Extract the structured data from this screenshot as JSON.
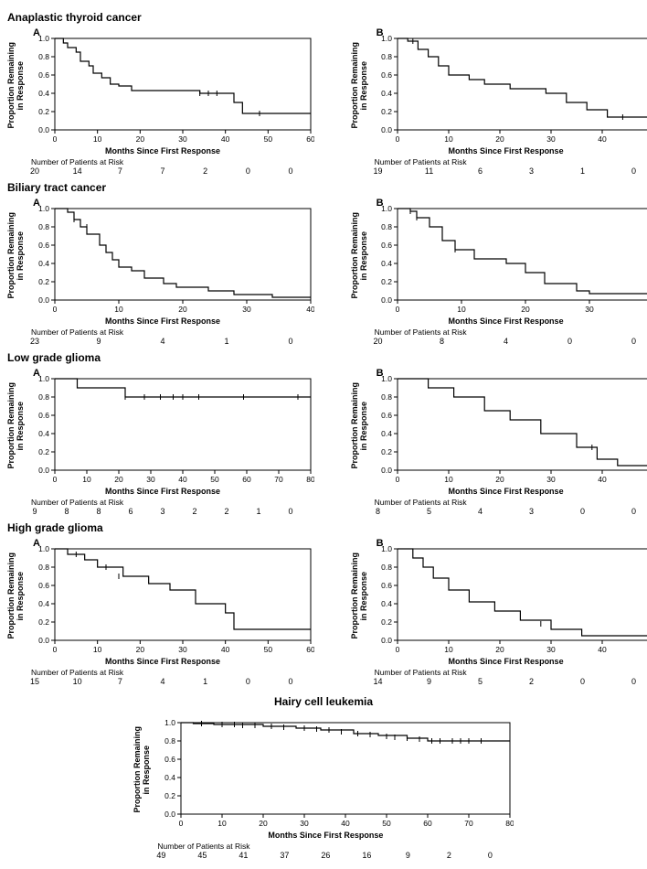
{
  "global": {
    "y_axis_title": "Proportion Remaining\nin Response",
    "x_axis_title": "Months Since First Response",
    "risk_label": "Number of Patients at Risk",
    "line_color": "#000000",
    "background_color": "#ffffff",
    "axis_color": "#000000",
    "font_family": "Arial",
    "label_fontsize": 9,
    "title_fontsize": 12,
    "y_ticks": [
      0,
      0.2,
      0.4,
      0.6,
      0.8,
      1.0
    ]
  },
  "groups": [
    {
      "title": "Anaplastic thyroid cancer",
      "panels": [
        {
          "label": "A",
          "xlim": [
            0,
            60
          ],
          "xtick_step": 10,
          "km": [
            [
              0,
              1.0
            ],
            [
              2,
              0.95
            ],
            [
              3,
              0.9
            ],
            [
              5,
              0.85
            ],
            [
              6,
              0.75
            ],
            [
              8,
              0.7
            ],
            [
              9,
              0.62
            ],
            [
              11,
              0.57
            ],
            [
              13,
              0.5
            ],
            [
              15,
              0.48
            ],
            [
              18,
              0.43
            ],
            [
              20,
              0.43
            ],
            [
              34,
              0.4
            ],
            [
              42,
              0.3
            ],
            [
              44,
              0.18
            ],
            [
              60,
              0.18
            ]
          ],
          "censors": [
            [
              34,
              0.4
            ],
            [
              36,
              0.4
            ],
            [
              38,
              0.4
            ],
            [
              48,
              0.18
            ]
          ],
          "risk": [
            20,
            14,
            7,
            7,
            2,
            0,
            0
          ]
        },
        {
          "label": "B",
          "xlim": [
            0,
            50
          ],
          "xtick_step": 10,
          "km": [
            [
              0,
              1.0
            ],
            [
              2,
              0.97
            ],
            [
              4,
              0.88
            ],
            [
              6,
              0.8
            ],
            [
              8,
              0.7
            ],
            [
              10,
              0.6
            ],
            [
              14,
              0.55
            ],
            [
              17,
              0.5
            ],
            [
              22,
              0.45
            ],
            [
              29,
              0.4
            ],
            [
              33,
              0.3
            ],
            [
              37,
              0.22
            ],
            [
              41,
              0.14
            ],
            [
              50,
              0.14
            ]
          ],
          "censors": [
            [
              3,
              0.97
            ],
            [
              44,
              0.14
            ]
          ],
          "risk": [
            19,
            11,
            6,
            3,
            1,
            0
          ]
        }
      ]
    },
    {
      "title": "Biliary tract cancer",
      "panels": [
        {
          "label": "A",
          "xlim": [
            0,
            40
          ],
          "xtick_step": 10,
          "km": [
            [
              0,
              1.0
            ],
            [
              2,
              0.96
            ],
            [
              3,
              0.88
            ],
            [
              4,
              0.8
            ],
            [
              5,
              0.72
            ],
            [
              7,
              0.6
            ],
            [
              8,
              0.52
            ],
            [
              9,
              0.44
            ],
            [
              10,
              0.36
            ],
            [
              12,
              0.32
            ],
            [
              14,
              0.24
            ],
            [
              17,
              0.18
            ],
            [
              19,
              0.14
            ],
            [
              24,
              0.1
            ],
            [
              28,
              0.06
            ],
            [
              34,
              0.03
            ],
            [
              40,
              0.03
            ]
          ],
          "censors": [
            [
              3,
              0.88
            ],
            [
              5,
              0.8
            ]
          ],
          "risk": [
            23,
            9,
            4,
            1,
            0
          ]
        },
        {
          "label": "B",
          "xlim": [
            0,
            40
          ],
          "xtick_step": 10,
          "km": [
            [
              0,
              1.0
            ],
            [
              2,
              0.97
            ],
            [
              3,
              0.9
            ],
            [
              5,
              0.8
            ],
            [
              7,
              0.65
            ],
            [
              9,
              0.55
            ],
            [
              12,
              0.45
            ],
            [
              17,
              0.4
            ],
            [
              20,
              0.3
            ],
            [
              23,
              0.18
            ],
            [
              28,
              0.1
            ],
            [
              30,
              0.07
            ],
            [
              40,
              0.07
            ]
          ],
          "censors": [
            [
              2,
              0.97
            ],
            [
              3,
              0.9
            ],
            [
              9,
              0.55
            ]
          ],
          "risk": [
            20,
            8,
            4,
            0,
            0
          ]
        }
      ]
    },
    {
      "title": "Low grade glioma",
      "panels": [
        {
          "label": "A",
          "xlim": [
            0,
            80
          ],
          "xtick_step": 10,
          "km": [
            [
              0,
              1.0
            ],
            [
              7,
              0.9
            ],
            [
              17,
              0.9
            ],
            [
              22,
              0.8
            ],
            [
              80,
              0.8
            ]
          ],
          "censors": [
            [
              22,
              0.8
            ],
            [
              28,
              0.8
            ],
            [
              33,
              0.8
            ],
            [
              37,
              0.8
            ],
            [
              40,
              0.8
            ],
            [
              45,
              0.8
            ],
            [
              59,
              0.8
            ],
            [
              76,
              0.8
            ]
          ],
          "risk": [
            9,
            8,
            8,
            6,
            3,
            2,
            2,
            1,
            0
          ]
        },
        {
          "label": "B",
          "xlim": [
            0,
            50
          ],
          "xtick_step": 10,
          "km": [
            [
              0,
              1.0
            ],
            [
              6,
              0.9
            ],
            [
              11,
              0.8
            ],
            [
              17,
              0.65
            ],
            [
              22,
              0.55
            ],
            [
              28,
              0.4
            ],
            [
              35,
              0.25
            ],
            [
              39,
              0.12
            ],
            [
              43,
              0.05
            ],
            [
              50,
              0.05
            ]
          ],
          "censors": [
            [
              38,
              0.25
            ]
          ],
          "risk": [
            8,
            5,
            4,
            3,
            0,
            0
          ]
        }
      ]
    },
    {
      "title": "High grade glioma",
      "panels": [
        {
          "label": "A",
          "xlim": [
            0,
            60
          ],
          "xtick_step": 10,
          "km": [
            [
              0,
              1.0
            ],
            [
              3,
              0.94
            ],
            [
              7,
              0.88
            ],
            [
              10,
              0.8
            ],
            [
              16,
              0.7
            ],
            [
              22,
              0.62
            ],
            [
              27,
              0.55
            ],
            [
              33,
              0.4
            ],
            [
              40,
              0.3
            ],
            [
              42,
              0.12
            ],
            [
              60,
              0.12
            ]
          ],
          "censors": [
            [
              5,
              0.94
            ],
            [
              12,
              0.8
            ],
            [
              15,
              0.7
            ]
          ],
          "risk": [
            15,
            10,
            7,
            4,
            1,
            0,
            0
          ]
        },
        {
          "label": "B",
          "xlim": [
            0,
            50
          ],
          "xtick_step": 10,
          "km": [
            [
              0,
              1.0
            ],
            [
              3,
              0.9
            ],
            [
              5,
              0.8
            ],
            [
              7,
              0.68
            ],
            [
              10,
              0.55
            ],
            [
              14,
              0.42
            ],
            [
              19,
              0.32
            ],
            [
              24,
              0.22
            ],
            [
              30,
              0.12
            ],
            [
              36,
              0.05
            ],
            [
              50,
              0.05
            ]
          ],
          "censors": [
            [
              28,
              0.18
            ]
          ],
          "risk": [
            14,
            9,
            5,
            2,
            0,
            0
          ]
        }
      ]
    }
  ],
  "hairy": {
    "title": "Hairy cell leukemia",
    "xlim": [
      0,
      80
    ],
    "xtick_step": 10,
    "km": [
      [
        0,
        1.0
      ],
      [
        3,
        0.99
      ],
      [
        8,
        0.98
      ],
      [
        20,
        0.96
      ],
      [
        28,
        0.94
      ],
      [
        34,
        0.92
      ],
      [
        42,
        0.88
      ],
      [
        48,
        0.86
      ],
      [
        55,
        0.83
      ],
      [
        60,
        0.8
      ],
      [
        80,
        0.8
      ]
    ],
    "censors": [
      [
        5,
        0.99
      ],
      [
        10,
        0.98
      ],
      [
        13,
        0.98
      ],
      [
        15,
        0.97
      ],
      [
        18,
        0.97
      ],
      [
        22,
        0.96
      ],
      [
        25,
        0.95
      ],
      [
        30,
        0.94
      ],
      [
        33,
        0.93
      ],
      [
        36,
        0.92
      ],
      [
        39,
        0.9
      ],
      [
        43,
        0.88
      ],
      [
        46,
        0.87
      ],
      [
        50,
        0.85
      ],
      [
        52,
        0.84
      ],
      [
        55,
        0.83
      ],
      [
        58,
        0.82
      ],
      [
        61,
        0.8
      ],
      [
        63,
        0.8
      ],
      [
        66,
        0.8
      ],
      [
        68,
        0.8
      ],
      [
        70,
        0.8
      ],
      [
        73,
        0.8
      ]
    ],
    "risk": [
      49,
      45,
      41,
      37,
      26,
      16,
      9,
      2,
      0
    ]
  }
}
